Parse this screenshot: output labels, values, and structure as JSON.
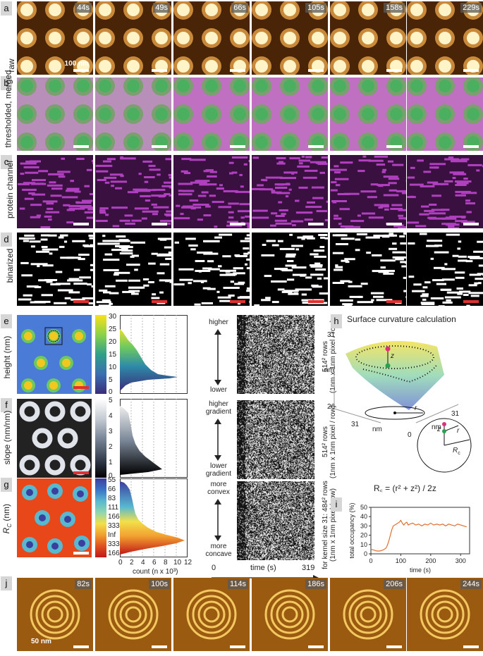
{
  "panel_labels": [
    "a",
    "b",
    "c",
    "d",
    "e",
    "f",
    "g",
    "h",
    "i",
    "j"
  ],
  "rows": {
    "a_label": "raw",
    "b_label": "thresholded, merged",
    "c_label": "protein channel",
    "d_label": "binarized",
    "times": [
      "44s",
      "49s",
      "66s",
      "105s",
      "158s",
      "229s"
    ],
    "scale_label": "100 nm"
  },
  "e": {
    "ylabel": "height (nm)",
    "colorbar_ticks": [
      "30",
      "25",
      "20",
      "15",
      "10",
      "5",
      "0"
    ],
    "arrow_top": "higher",
    "arrow_bottom": "lower",
    "side": "514² rows",
    "side2": "(1nm x 1nm pixel / row)"
  },
  "f": {
    "ylabel": "slope (nm/nm)",
    "colorbar_ticks": [
      "5",
      "4",
      "3",
      "2",
      "1",
      "0"
    ],
    "arrow_top_1": "higher",
    "arrow_top_2": "gradient",
    "arrow_bottom_1": "lower",
    "arrow_bottom_2": "gradient",
    "side": "514² rows",
    "side2": "(1nm x 1nm pixel / row)"
  },
  "g": {
    "ylabel": "R",
    "ylabel_sub": "C",
    "ylabel_unit": " (nm)",
    "colorbar_ticks": [
      "55",
      "66",
      "83",
      "111",
      "166",
      "333",
      "Inf",
      "333",
      "166"
    ],
    "arrow_top_1": "more",
    "arrow_top_2": "convex",
    "arrow_bottom_1": "more",
    "arrow_bottom_2": "concave",
    "side": "for kernel size 31: 484² rows",
    "side2": "(1nm x 1nm pixel / row)",
    "hist_xticks": [
      "0",
      "2",
      "4",
      "6",
      "8",
      "10",
      "12"
    ],
    "hist_xlabel": "count (n x 10³)",
    "time_ticks": [
      "0",
      "319"
    ],
    "time_label": "time (s)"
  },
  "h": {
    "title": "Surface curvature calculation",
    "z_top": "31",
    "z_bottom": "26",
    "z_unit": "nm",
    "x_left": "31",
    "x_unit1": "nm",
    "x_mid": "0",
    "x_unit2": "nm",
    "x_right": "31",
    "z_sym": "z",
    "r_sym": "r",
    "rc_sym": "R",
    "rc_sub": "c",
    "formula": "R꜀ = (r² + z²) / 2z"
  },
  "j": {
    "times": [
      "82s",
      "100s",
      "114s",
      "186s",
      "206s",
      "244s"
    ],
    "scale_label": "50 nm"
  },
  "chart_data": {
    "type": "line",
    "title": "",
    "xlabel": "time (s)",
    "ylabel": "total occupancy (%)",
    "xlim": [
      0,
      330
    ],
    "ylim": [
      0,
      50
    ],
    "xticks": [
      0,
      100,
      200,
      300
    ],
    "yticks": [
      0,
      10,
      20,
      30,
      40,
      50
    ],
    "color": "#e07030",
    "x": [
      0,
      10,
      20,
      30,
      40,
      50,
      55,
      60,
      65,
      70,
      75,
      80,
      85,
      90,
      95,
      100,
      105,
      110,
      115,
      120,
      125,
      130,
      140,
      150,
      160,
      170,
      180,
      190,
      200,
      210,
      220,
      230,
      240,
      250,
      260,
      270,
      280,
      290,
      300,
      310,
      320
    ],
    "y": [
      5,
      4,
      3,
      3,
      4,
      6,
      9,
      14,
      20,
      26,
      30,
      31,
      32,
      33,
      34,
      36,
      33,
      31,
      33,
      34,
      31,
      32,
      33,
      31,
      32,
      30,
      32,
      31,
      33,
      31,
      32,
      31,
      32,
      30,
      32,
      31,
      30,
      32,
      31,
      30,
      29
    ]
  }
}
